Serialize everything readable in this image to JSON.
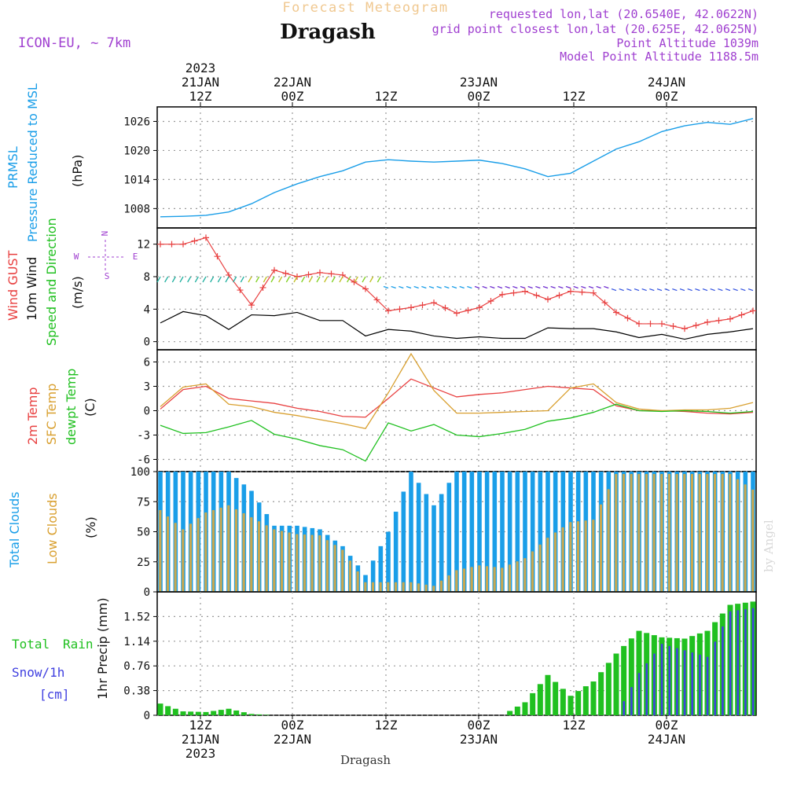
{
  "header": {
    "title": "Dragash",
    "subtitle": "Forecast Meteogram",
    "model": "ICON-EU, ~ 7km",
    "info": [
      "requested lon,lat (20.6540E, 42.0622N)",
      "grid point closest lon,lat (20.625E, 42.0625N)",
      "Point Altitude 1039m",
      "Model Point Altitude 1188.5m"
    ],
    "footer": "Dragash",
    "watermark": "by Angel"
  },
  "time_axis": {
    "top": [
      {
        "lines": [
          "2023",
          "21JAN",
          "12Z"
        ]
      },
      {
        "lines": [
          "22JAN",
          "00Z"
        ]
      },
      {
        "lines": [
          "12Z"
        ]
      },
      {
        "lines": [
          "23JAN",
          "00Z"
        ]
      },
      {
        "lines": [
          "12Z"
        ]
      },
      {
        "lines": [
          "24JAN",
          "00Z"
        ]
      }
    ],
    "bottom": [
      {
        "lines": [
          "12Z",
          "21JAN",
          "2023"
        ]
      },
      {
        "lines": [
          "00Z",
          "22JAN"
        ]
      },
      {
        "lines": [
          "12Z"
        ]
      },
      {
        "lines": [
          "00Z",
          "23JAN"
        ]
      },
      {
        "lines": [
          "12Z"
        ]
      },
      {
        "lines": [
          "00Z",
          "24JAN"
        ]
      }
    ]
  },
  "panel_labels": {
    "pressure": {
      "a": "PRMSL",
      "b": "Pressure Reduced to MSL",
      "unit": "(hPa)"
    },
    "wind": {
      "a": "Wind GUST",
      "b": "10m Wind",
      "c": "Speed and Direction",
      "unit": "(m/s)"
    },
    "compass": {
      "n": "N",
      "s": "S",
      "e": "E",
      "w": "W"
    },
    "temp": {
      "a": "2m Temp",
      "b": "SFC Temp",
      "c": "dewpt Temp",
      "unit": "(C)"
    },
    "clouds": {
      "a": "Total Clouds",
      "b": "Low Clouds",
      "unit": "(%)"
    },
    "precip": {
      "a": "Total",
      "a2": "Rain",
      "b": "Snow/1h",
      "c": "[cm]",
      "unit": "1hr Precip (mm)"
    }
  },
  "colors": {
    "pressure": "#1a9ee8",
    "gust": "#e84040",
    "wind": "#000000",
    "t2m": "#e84040",
    "tsfc": "#d9a030",
    "dewpt": "#20c020",
    "total_clouds": "#1a9ee8",
    "low_clouds": "#c8a850",
    "rain": "#20c020",
    "snow": "#4040e0",
    "info": "#a040d0",
    "grid": "#999999"
  },
  "chart_data": [
    {
      "type": "line",
      "panel": "pressure",
      "ylim": [
        1004,
        1029
      ],
      "yticks": [
        1008,
        1014,
        1020,
        1026
      ],
      "x_hours": [
        0,
        3,
        6,
        9,
        12,
        15,
        18,
        21,
        24,
        27,
        30,
        33,
        36,
        39,
        42,
        45,
        48,
        51,
        54,
        57,
        60,
        63,
        66,
        69,
        72,
        75,
        78
      ],
      "series": [
        {
          "name": "PRMSL",
          "values": [
            1006.3,
            1006.4,
            1006.6,
            1007.3,
            1009.0,
            1011.3,
            1013.1,
            1014.6,
            1015.8,
            1017.6,
            1018.1,
            1017.8,
            1017.6,
            1017.8,
            1018.0,
            1017.3,
            1016.2,
            1014.6,
            1015.3,
            1017.8,
            1020.3,
            1021.8,
            1023.9,
            1025.1,
            1025.8,
            1025.4,
            1026.6
          ]
        }
      ]
    },
    {
      "type": "line",
      "panel": "wind",
      "ylim": [
        -1,
        14
      ],
      "yticks": [
        0,
        4,
        8,
        12
      ],
      "x_hours": [
        0,
        3,
        6,
        9,
        12,
        15,
        18,
        21,
        24,
        27,
        30,
        33,
        36,
        39,
        42,
        45,
        48,
        51,
        54,
        57,
        60,
        63,
        66,
        69,
        72,
        75,
        78
      ],
      "series": [
        {
          "name": "Wind GUST",
          "values": [
            12.0,
            12.0,
            12.8,
            8.2,
            4.5,
            8.8,
            8.0,
            8.5,
            8.2,
            6.5,
            3.8,
            4.2,
            4.8,
            3.5,
            4.2,
            5.8,
            6.2,
            5.2,
            6.2,
            6.0,
            3.6,
            2.2,
            2.2,
            1.6,
            2.4,
            2.8,
            3.8
          ]
        },
        {
          "name": "10m Wind",
          "values": [
            2.3,
            3.7,
            3.2,
            1.5,
            3.3,
            3.2,
            3.6,
            2.6,
            2.6,
            0.7,
            1.5,
            1.3,
            0.7,
            0.4,
            0.6,
            0.4,
            0.4,
            1.7,
            1.6,
            1.6,
            1.2,
            0.5,
            0.9,
            0.3,
            0.9,
            1.2,
            1.6
          ]
        }
      ]
    },
    {
      "type": "line",
      "panel": "temperature",
      "ylim": [
        -7.5,
        7.5
      ],
      "yticks": [
        -6,
        -3,
        0,
        3,
        6
      ],
      "x_hours": [
        0,
        3,
        6,
        9,
        12,
        15,
        18,
        21,
        24,
        27,
        30,
        33,
        36,
        39,
        42,
        45,
        48,
        51,
        54,
        57,
        60,
        63,
        66,
        69,
        72,
        75,
        78
      ],
      "series": [
        {
          "name": "2m Temp",
          "values": [
            0.2,
            2.6,
            3.0,
            1.5,
            1.2,
            0.9,
            0.3,
            -0.1,
            -0.7,
            -0.8,
            1.5,
            3.9,
            2.8,
            1.7,
            2.0,
            2.2,
            2.6,
            3.0,
            2.8,
            2.6,
            0.6,
            0.0,
            0.0,
            -0.1,
            -0.3,
            -0.4,
            -0.2
          ]
        },
        {
          "name": "SFC Temp",
          "values": [
            0.5,
            2.9,
            3.3,
            0.8,
            0.5,
            -0.2,
            -0.6,
            -1.1,
            -1.6,
            -2.2,
            2.2,
            7.0,
            2.5,
            -0.3,
            -0.3,
            -0.2,
            -0.1,
            0.0,
            2.8,
            3.3,
            1.0,
            0.2,
            0.0,
            0.1,
            0.1,
            0.3,
            1.0
          ]
        },
        {
          "name": "dewpt Temp",
          "values": [
            -1.8,
            -2.8,
            -2.7,
            -2.0,
            -1.2,
            -2.9,
            -3.5,
            -4.3,
            -4.8,
            -6.2,
            -1.5,
            -2.5,
            -1.7,
            -3.0,
            -3.2,
            -2.8,
            -2.3,
            -1.3,
            -0.9,
            -0.2,
            0.8,
            0.0,
            -0.1,
            0.0,
            -0.1,
            -0.3,
            -0.1
          ]
        }
      ]
    },
    {
      "type": "bar",
      "panel": "clouds",
      "ylim": [
        0,
        100
      ],
      "yticks": [
        0,
        25,
        50,
        75,
        100
      ],
      "x_hours": [
        0,
        3,
        6,
        9,
        12,
        15,
        18,
        21,
        24,
        27,
        30,
        33,
        36,
        39,
        42,
        45,
        48,
        51,
        54,
        57,
        60,
        63,
        66,
        69,
        72,
        75,
        78
      ],
      "series": [
        {
          "name": "Total Clouds",
          "values": [
            100,
            100,
            100,
            100,
            84,
            55,
            55,
            52,
            38,
            14,
            50,
            100,
            72,
            100,
            100,
            100,
            100,
            100,
            100,
            100,
            100,
            100,
            100,
            100,
            100,
            100,
            100
          ]
        },
        {
          "name": "Low Clouds",
          "values": [
            68,
            52,
            66,
            72,
            62,
            52,
            48,
            47,
            35,
            8,
            8,
            8,
            5,
            18,
            22,
            20,
            28,
            45,
            58,
            60,
            98,
            98,
            98,
            98,
            98,
            98,
            85
          ]
        }
      ]
    },
    {
      "type": "bar",
      "panel": "precip",
      "ylim": [
        0,
        1.9
      ],
      "yticks": [
        0,
        0.38,
        0.76,
        1.14,
        1.52
      ],
      "x_hours": [
        0,
        3,
        6,
        9,
        12,
        15,
        18,
        21,
        24,
        27,
        30,
        33,
        36,
        39,
        42,
        45,
        48,
        51,
        54,
        57,
        60,
        63,
        66,
        69,
        72,
        75,
        78
      ],
      "series": [
        {
          "name": "Total Rain",
          "values": [
            0.18,
            0.06,
            0.05,
            0.1,
            0.02,
            0,
            0,
            0,
            0,
            0,
            0,
            0,
            0,
            0,
            0,
            0,
            0.2,
            0.62,
            0.3,
            0.52,
            0.95,
            1.3,
            1.2,
            1.18,
            1.3,
            1.7,
            1.75
          ]
        },
        {
          "name": "Snow/1h",
          "values": [
            0,
            0,
            0,
            0,
            0,
            0,
            0,
            0,
            0,
            0,
            0,
            0,
            0,
            0,
            0,
            0,
            0,
            0,
            0,
            0,
            0,
            0.65,
            1.1,
            1.0,
            0.9,
            1.6,
            1.65
          ]
        }
      ]
    }
  ]
}
